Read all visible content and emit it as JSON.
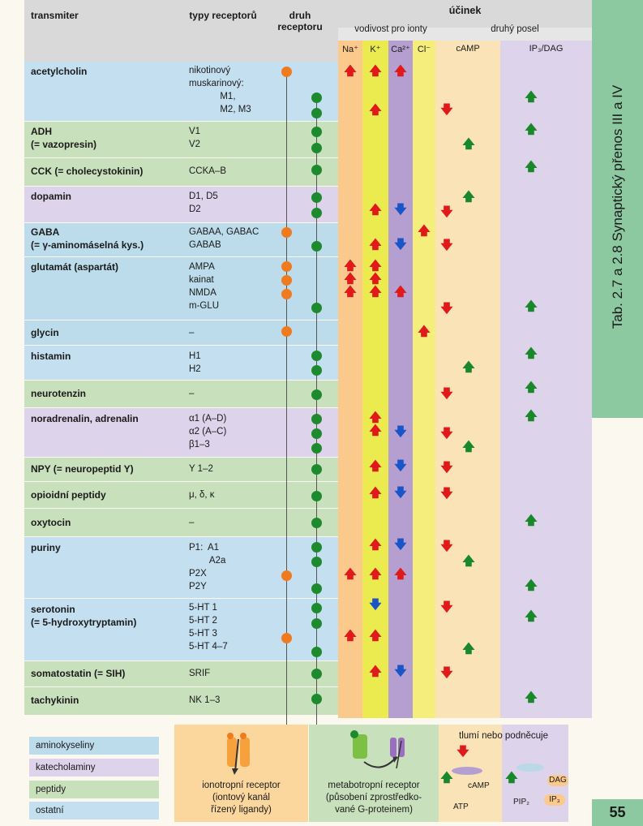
{
  "header": {
    "transmitter": "transmiter",
    "receptor_types": "typy receptorů",
    "receptor_kind": "druh receptoru",
    "effect": "účinek",
    "ion_conductance": "vodivost pro ionty",
    "second_messenger": "druhý posel",
    "ions": [
      "Na⁺",
      "K⁺",
      "Ca²⁺",
      "Cl⁻"
    ],
    "messengers": [
      "cAMP",
      "IP₃/DAG"
    ]
  },
  "rows": [
    {
      "name": "acetylcholin",
      "receptors": "nikotinový\nmuskarinový:\n            M1,\n            M2, M3"
    },
    {
      "name": "ADH\n(= vazopresin)",
      "receptors": "V1\nV2"
    },
    {
      "name": "CCK (= cholecystokinin)",
      "receptors": "CCKA–B"
    },
    {
      "name": "dopamin",
      "receptors": "D1, D5\nD2"
    },
    {
      "name": "GABA\n(= γ-aminomáselná kys.)",
      "receptors": "GABAA, GABAC\nGABAB"
    },
    {
      "name": "glutamát (aspartát)",
      "receptors": "AMPA\nkainat\nNMDA\nm-GLU"
    },
    {
      "name": "glycin",
      "receptors": "–"
    },
    {
      "name": "histamin",
      "receptors": "H1\nH2"
    },
    {
      "name": "neurotenzin",
      "receptors": "–"
    },
    {
      "name": "noradrenalin, adrenalin",
      "receptors": "α1 (A–D)\nα2 (A–C)\nβ1–3"
    },
    {
      "name": "NPY (= neuropeptid Y)",
      "receptors": "Y 1–2"
    },
    {
      "name": "opioidní peptidy",
      "receptors": "μ, δ, κ"
    },
    {
      "name": "oxytocin",
      "receptors": "–"
    },
    {
      "name": "puriny",
      "receptors": "P1:  A1\n        A2a\nP2X\nP2Y"
    },
    {
      "name": "serotonin\n(= 5-hydroxytryptamin)",
      "receptors": "5-HT 1\n5-HT 2\n5-HT 3\n5-HT 4–7"
    },
    {
      "name": "somatostatin (= SIH)",
      "receptors": "SRIF"
    },
    {
      "name": "tachykinin",
      "receptors": "NK 1–3"
    }
  ],
  "legend": {
    "categories": [
      "aminokyseliny",
      "katecholaminy",
      "peptidy",
      "ostatní"
    ],
    "ionotropic": "ionotropní receptor\n(iontový kanál\nřízený ligandy)",
    "metabotropic": "metabotropní receptor\n(působení zprostředko-\nvané G-proteinem)",
    "inhibit_stimulate": "tlumí nebo podněcuje",
    "camp_diagram": {
      "atp": "ATP",
      "camp": "cAMP"
    },
    "ip3_diagram": {
      "pip2": "PIP₂",
      "dag": "DAG",
      "ip3": "IP₃"
    }
  },
  "side_title": "Tab. 2.7 a 2.8  Synaptický přenos III a IV",
  "page_number": "55",
  "colors": {
    "aminokyseliny": "#bcdcec",
    "katecholaminy": "#ddd3ea",
    "peptidy": "#c9e0bd",
    "ostatni": "#c4dff0",
    "na": "#fbc98c",
    "k": "#ebea4f",
    "ca": "#b59fd1",
    "cl": "#f6ee7c",
    "camp": "#fbe3b8",
    "ip3": "#ddd3ea",
    "side_bar": "#8cc8a0"
  }
}
